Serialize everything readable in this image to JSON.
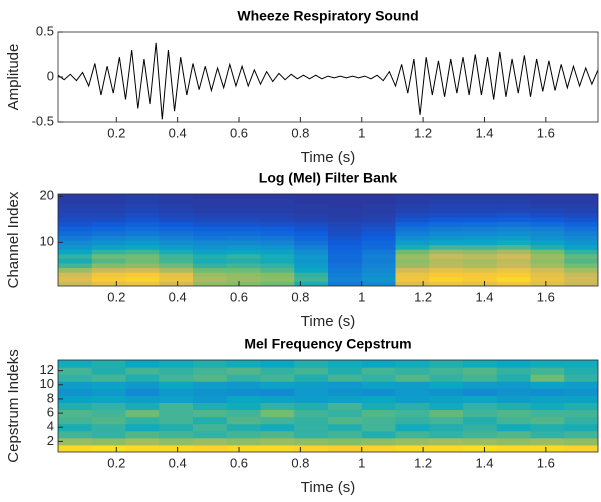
{
  "chart_data": [
    {
      "type": "line",
      "title": "Wheeze Respiratory Sound",
      "xlabel": "Time (s)",
      "ylabel": "Amplitude",
      "color": "#000000",
      "x": [
        0.01,
        0.03,
        0.05,
        0.07,
        0.09,
        0.11,
        0.13,
        0.15,
        0.17,
        0.19,
        0.21,
        0.23,
        0.25,
        0.27,
        0.29,
        0.31,
        0.33,
        0.35,
        0.37,
        0.39,
        0.41,
        0.43,
        0.45,
        0.47,
        0.49,
        0.51,
        0.53,
        0.55,
        0.57,
        0.59,
        0.61,
        0.63,
        0.65,
        0.67,
        0.69,
        0.71,
        0.73,
        0.75,
        0.77,
        0.79,
        0.81,
        0.83,
        0.85,
        0.87,
        0.89,
        0.91,
        0.93,
        0.95,
        0.97,
        0.99,
        1.01,
        1.03,
        1.05,
        1.07,
        1.09,
        1.11,
        1.13,
        1.15,
        1.17,
        1.19,
        1.21,
        1.23,
        1.25,
        1.27,
        1.29,
        1.31,
        1.33,
        1.35,
        1.37,
        1.39,
        1.41,
        1.43,
        1.45,
        1.47,
        1.49,
        1.51,
        1.53,
        1.55,
        1.57,
        1.59,
        1.61,
        1.63,
        1.65,
        1.67,
        1.69,
        1.71,
        1.73,
        1.75,
        1.77
      ],
      "values": [
        0.02,
        -0.03,
        0.03,
        -0.04,
        0.05,
        -0.1,
        0.15,
        -0.2,
        0.12,
        -0.18,
        0.22,
        -0.25,
        0.3,
        -0.35,
        0.2,
        -0.3,
        0.38,
        -0.47,
        0.3,
        -0.38,
        0.22,
        -0.2,
        0.15,
        -0.14,
        0.12,
        -0.15,
        0.1,
        -0.12,
        0.14,
        -0.1,
        0.12,
        -0.1,
        0.08,
        -0.08,
        0.06,
        -0.05,
        0.04,
        -0.03,
        0.03,
        -0.02,
        0.02,
        -0.02,
        0.02,
        -0.02,
        0.01,
        -0.01,
        0.01,
        -0.01,
        0.01,
        -0.01,
        0.01,
        -0.02,
        0.02,
        -0.04,
        0.06,
        -0.1,
        0.14,
        -0.18,
        0.2,
        -0.42,
        0.22,
        -0.2,
        0.18,
        -0.22,
        0.2,
        -0.18,
        0.22,
        -0.2,
        0.25,
        -0.2,
        0.22,
        -0.25,
        0.28,
        -0.22,
        0.2,
        -0.18,
        0.24,
        -0.22,
        0.2,
        -0.16,
        0.18,
        -0.15,
        0.14,
        -0.12,
        0.12,
        -0.1,
        0.1,
        -0.08,
        0.08
      ],
      "xlim": [
        0.01,
        1.77
      ],
      "ylim": [
        -0.5,
        0.5
      ],
      "xticks": [
        0.2,
        0.4,
        0.6,
        0.8,
        1,
        1.2,
        1.4,
        1.6
      ],
      "yticks": [
        -0.5,
        0,
        0.5
      ]
    },
    {
      "type": "heatmap",
      "title": "Log (Mel) Filter Bank",
      "xlabel": "Time (s)",
      "ylabel": "Channel Index",
      "colormap": [
        "#352a87",
        "#0f5cdd",
        "#1485d4",
        "#09a9c2",
        "#7dbe69",
        "#d1bb59",
        "#fbca34",
        "#f9fb0e"
      ],
      "clim": [
        0,
        1
      ],
      "x": [
        0.065,
        0.175,
        0.285,
        0.395,
        0.505,
        0.615,
        0.725,
        0.835,
        0.945,
        1.055,
        1.165,
        1.275,
        1.385,
        1.495,
        1.605,
        1.715
      ],
      "y": [
        1,
        2,
        3,
        4,
        5,
        6,
        7,
        8,
        9,
        10,
        11,
        12,
        13,
        14,
        15,
        16,
        17,
        18,
        19,
        20
      ],
      "z": [
        [
          0.7,
          0.78,
          0.8,
          0.72,
          0.6,
          0.58,
          0.55,
          0.45,
          0.25,
          0.3,
          0.75,
          0.8,
          0.78,
          0.82,
          0.76,
          0.7
        ],
        [
          0.75,
          0.85,
          0.88,
          0.8,
          0.65,
          0.62,
          0.6,
          0.5,
          0.28,
          0.35,
          0.82,
          0.88,
          0.85,
          0.9,
          0.8,
          0.72
        ],
        [
          0.72,
          0.82,
          0.85,
          0.78,
          0.62,
          0.6,
          0.58,
          0.48,
          0.26,
          0.32,
          0.8,
          0.85,
          0.84,
          0.86,
          0.78,
          0.7
        ],
        [
          0.62,
          0.7,
          0.72,
          0.65,
          0.55,
          0.55,
          0.52,
          0.42,
          0.24,
          0.3,
          0.72,
          0.78,
          0.76,
          0.8,
          0.72,
          0.64
        ],
        [
          0.5,
          0.58,
          0.6,
          0.55,
          0.48,
          0.5,
          0.48,
          0.38,
          0.22,
          0.28,
          0.62,
          0.68,
          0.66,
          0.7,
          0.64,
          0.56
        ],
        [
          0.45,
          0.52,
          0.55,
          0.5,
          0.45,
          0.46,
          0.44,
          0.35,
          0.2,
          0.26,
          0.6,
          0.66,
          0.64,
          0.68,
          0.6,
          0.52
        ],
        [
          0.48,
          0.55,
          0.56,
          0.5,
          0.46,
          0.48,
          0.45,
          0.36,
          0.2,
          0.27,
          0.62,
          0.7,
          0.68,
          0.72,
          0.62,
          0.54
        ],
        [
          0.42,
          0.48,
          0.5,
          0.45,
          0.4,
          0.42,
          0.4,
          0.32,
          0.18,
          0.24,
          0.55,
          0.62,
          0.6,
          0.64,
          0.56,
          0.48
        ],
        [
          0.35,
          0.4,
          0.42,
          0.38,
          0.34,
          0.36,
          0.34,
          0.27,
          0.16,
          0.2,
          0.45,
          0.5,
          0.5,
          0.52,
          0.46,
          0.4
        ],
        [
          0.3,
          0.34,
          0.36,
          0.32,
          0.3,
          0.3,
          0.28,
          0.22,
          0.14,
          0.18,
          0.38,
          0.42,
          0.42,
          0.44,
          0.4,
          0.35
        ],
        [
          0.25,
          0.28,
          0.3,
          0.27,
          0.24,
          0.25,
          0.23,
          0.18,
          0.12,
          0.15,
          0.32,
          0.35,
          0.36,
          0.38,
          0.34,
          0.3
        ],
        [
          0.2,
          0.22,
          0.24,
          0.22,
          0.2,
          0.2,
          0.18,
          0.15,
          0.1,
          0.13,
          0.26,
          0.3,
          0.3,
          0.32,
          0.3,
          0.26
        ],
        [
          0.16,
          0.18,
          0.2,
          0.18,
          0.16,
          0.16,
          0.15,
          0.12,
          0.09,
          0.11,
          0.22,
          0.25,
          0.26,
          0.28,
          0.26,
          0.22
        ],
        [
          0.12,
          0.14,
          0.16,
          0.14,
          0.12,
          0.12,
          0.11,
          0.1,
          0.08,
          0.09,
          0.17,
          0.2,
          0.21,
          0.22,
          0.2,
          0.17
        ],
        [
          0.1,
          0.1,
          0.12,
          0.1,
          0.09,
          0.09,
          0.08,
          0.07,
          0.06,
          0.07,
          0.12,
          0.14,
          0.14,
          0.15,
          0.14,
          0.12
        ],
        [
          0.08,
          0.08,
          0.1,
          0.08,
          0.07,
          0.07,
          0.07,
          0.06,
          0.05,
          0.06,
          0.09,
          0.1,
          0.1,
          0.11,
          0.1,
          0.09
        ],
        [
          0.07,
          0.07,
          0.08,
          0.07,
          0.06,
          0.06,
          0.06,
          0.05,
          0.05,
          0.05,
          0.07,
          0.08,
          0.08,
          0.08,
          0.08,
          0.07
        ],
        [
          0.06,
          0.06,
          0.07,
          0.06,
          0.05,
          0.05,
          0.05,
          0.05,
          0.04,
          0.05,
          0.06,
          0.07,
          0.07,
          0.07,
          0.06,
          0.06
        ],
        [
          0.05,
          0.05,
          0.06,
          0.05,
          0.05,
          0.05,
          0.05,
          0.04,
          0.04,
          0.04,
          0.05,
          0.06,
          0.06,
          0.06,
          0.05,
          0.05
        ],
        [
          0.05,
          0.05,
          0.06,
          0.05,
          0.04,
          0.04,
          0.04,
          0.04,
          0.04,
          0.04,
          0.05,
          0.05,
          0.05,
          0.05,
          0.05,
          0.05
        ]
      ],
      "xlim": [
        0.01,
        1.77
      ],
      "ylim": [
        0.5,
        20.5
      ],
      "xticks": [
        0.2,
        0.4,
        0.6,
        0.8,
        1,
        1.2,
        1.4,
        1.6
      ],
      "yticks": [
        10,
        20
      ]
    },
    {
      "type": "heatmap",
      "title": "Mel Frequency Cepstrum",
      "xlabel": "Time (s)",
      "ylabel": "Cepstrum Indeks",
      "colormap": [
        "#352a87",
        "#0f5cdd",
        "#1485d4",
        "#09a9c2",
        "#7dbe69",
        "#d1bb59",
        "#fbca34",
        "#f9fb0e"
      ],
      "clim": [
        0,
        1
      ],
      "x": [
        0.065,
        0.175,
        0.285,
        0.395,
        0.505,
        0.615,
        0.725,
        0.835,
        0.945,
        1.055,
        1.165,
        1.275,
        1.385,
        1.495,
        1.605,
        1.715
      ],
      "y": [
        1,
        2,
        3,
        4,
        5,
        6,
        7,
        8,
        9,
        10,
        11,
        12,
        13
      ],
      "z": [
        [
          0.9,
          0.92,
          0.9,
          0.9,
          0.88,
          0.9,
          0.9,
          0.88,
          0.86,
          0.88,
          0.9,
          0.9,
          0.92,
          0.9,
          0.9,
          0.88
        ],
        [
          0.62,
          0.6,
          0.64,
          0.6,
          0.62,
          0.6,
          0.62,
          0.6,
          0.58,
          0.6,
          0.62,
          0.64,
          0.62,
          0.6,
          0.62,
          0.6
        ],
        [
          0.5,
          0.48,
          0.52,
          0.5,
          0.48,
          0.5,
          0.52,
          0.48,
          0.5,
          0.46,
          0.5,
          0.48,
          0.5,
          0.52,
          0.48,
          0.5
        ],
        [
          0.45,
          0.48,
          0.44,
          0.46,
          0.5,
          0.46,
          0.44,
          0.48,
          0.46,
          0.5,
          0.44,
          0.46,
          0.48,
          0.44,
          0.46,
          0.45
        ],
        [
          0.5,
          0.52,
          0.48,
          0.5,
          0.46,
          0.52,
          0.5,
          0.48,
          0.52,
          0.5,
          0.48,
          0.5,
          0.46,
          0.5,
          0.52,
          0.48
        ],
        [
          0.52,
          0.5,
          0.55,
          0.5,
          0.52,
          0.5,
          0.56,
          0.5,
          0.48,
          0.52,
          0.5,
          0.54,
          0.5,
          0.52,
          0.5,
          0.5
        ],
        [
          0.46,
          0.48,
          0.45,
          0.5,
          0.46,
          0.44,
          0.48,
          0.46,
          0.5,
          0.45,
          0.47,
          0.44,
          0.48,
          0.46,
          0.44,
          0.46
        ],
        [
          0.4,
          0.42,
          0.38,
          0.4,
          0.36,
          0.42,
          0.4,
          0.38,
          0.4,
          0.42,
          0.38,
          0.4,
          0.42,
          0.38,
          0.4,
          0.4
        ],
        [
          0.34,
          0.36,
          0.3,
          0.36,
          0.34,
          0.32,
          0.3,
          0.36,
          0.34,
          0.32,
          0.36,
          0.34,
          0.3,
          0.34,
          0.32,
          0.34
        ],
        [
          0.38,
          0.4,
          0.36,
          0.42,
          0.38,
          0.36,
          0.4,
          0.38,
          0.36,
          0.4,
          0.38,
          0.42,
          0.38,
          0.36,
          0.4,
          0.38
        ],
        [
          0.48,
          0.5,
          0.46,
          0.5,
          0.52,
          0.48,
          0.5,
          0.46,
          0.5,
          0.48,
          0.52,
          0.48,
          0.5,
          0.46,
          0.55,
          0.48
        ],
        [
          0.5,
          0.46,
          0.5,
          0.48,
          0.5,
          0.52,
          0.48,
          0.5,
          0.46,
          0.5,
          0.48,
          0.5,
          0.52,
          0.48,
          0.5,
          0.46
        ],
        [
          0.44,
          0.46,
          0.42,
          0.44,
          0.46,
          0.44,
          0.42,
          0.46,
          0.44,
          0.42,
          0.44,
          0.46,
          0.44,
          0.42,
          0.44,
          0.44
        ]
      ],
      "xlim": [
        0.01,
        1.77
      ],
      "ylim": [
        0.5,
        13.5
      ],
      "xticks": [
        0.2,
        0.4,
        0.6,
        0.8,
        1,
        1.2,
        1.4,
        1.6
      ],
      "yticks": [
        2,
        4,
        6,
        8,
        10,
        12
      ]
    }
  ]
}
